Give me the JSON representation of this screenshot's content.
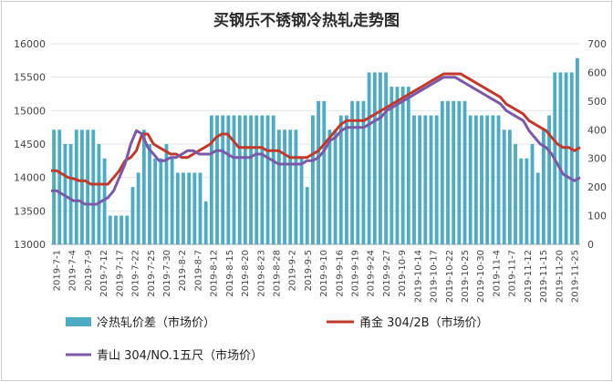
{
  "chart_data": {
    "type": "bar+line",
    "title": "买钢乐不锈钢冷热轧走势图",
    "left_axis": {
      "min": 13000,
      "max": 16000,
      "step": 500,
      "ticks": [
        "13000",
        "13500",
        "14000",
        "14500",
        "15000",
        "15500",
        "16000"
      ]
    },
    "right_axis": {
      "min": 0,
      "max": 700,
      "step": 100,
      "ticks": [
        "0",
        "100",
        "200",
        "300",
        "400",
        "500",
        "600",
        "700"
      ]
    },
    "x_labels": [
      "2019-7-1",
      "2019-7-4",
      "2019-7-9",
      "2019-7-12",
      "2019-7-17",
      "2019-7-22",
      "2019-7-25",
      "2019-7-30",
      "2019-8-2",
      "2019-8-7",
      "2019-8-12",
      "2019-8-15",
      "2019-8-20",
      "2019-8-23",
      "2019-8-28",
      "2019-9-2",
      "2019-9-5",
      "2019-9-10",
      "2019-9-16",
      "2019-9-19",
      "2019-9-24",
      "2019-9-27",
      "2019-10-9",
      "2019-10-14",
      "2019-10-17",
      "2019-10-22",
      "2019-10-25",
      "2019-10-30",
      "2019-11-4",
      "2019-11-7",
      "2019-11-12",
      "2019-11-15",
      "2019-11-20",
      "2019-11-25"
    ],
    "series": [
      {
        "name": "冷热轧价差（市场价）",
        "type": "bar",
        "axis": "right",
        "color": "#4eabc4",
        "values": [
          400,
          400,
          350,
          350,
          400,
          400,
          400,
          400,
          350,
          300,
          100,
          100,
          100,
          100,
          200,
          250,
          400,
          350,
          300,
          300,
          350,
          300,
          250,
          250,
          250,
          250,
          250,
          150,
          450,
          450,
          450,
          450,
          450,
          450,
          450,
          450,
          450,
          450,
          450,
          450,
          400,
          400,
          400,
          400,
          300,
          200,
          450,
          500,
          500,
          400,
          400,
          450,
          450,
          500,
          500,
          500,
          600,
          600,
          600,
          600,
          550,
          550,
          550,
          550,
          450,
          450,
          450,
          450,
          450,
          500,
          500,
          500,
          500,
          500,
          450,
          450,
          450,
          450,
          450,
          450,
          400,
          400,
          350,
          300,
          300,
          350,
          250,
          400,
          450,
          600,
          600,
          600,
          600,
          650
        ]
      },
      {
        "name": "甬金 304/2B（市场价）",
        "type": "line",
        "axis": "left",
        "color": "#c0392b",
        "values": [
          14100,
          14100,
          14050,
          14000,
          13980,
          13950,
          13950,
          13900,
          13900,
          13900,
          13900,
          14000,
          14100,
          14250,
          14300,
          14400,
          14650,
          14650,
          14500,
          14450,
          14400,
          14350,
          14350,
          14300,
          14300,
          14350,
          14400,
          14450,
          14500,
          14600,
          14650,
          14650,
          14550,
          14450,
          14450,
          14450,
          14450,
          14450,
          14400,
          14400,
          14400,
          14350,
          14300,
          14300,
          14300,
          14300,
          14350,
          14400,
          14500,
          14600,
          14700,
          14800,
          14850,
          14850,
          14850,
          14850,
          14900,
          14950,
          15000,
          15050,
          15100,
          15150,
          15200,
          15250,
          15300,
          15350,
          15400,
          15450,
          15500,
          15550,
          15550,
          15550,
          15550,
          15500,
          15450,
          15400,
          15350,
          15300,
          15250,
          15200,
          15100,
          15050,
          15000,
          14950,
          14850,
          14800,
          14750,
          14700,
          14600,
          14500,
          14450,
          14450,
          14400,
          14450
        ]
      },
      {
        "name": "青山 304/NO.1五尺（市场价）",
        "type": "line",
        "axis": "left",
        "color": "#7a5aa8",
        "values": [
          13800,
          13800,
          13750,
          13700,
          13650,
          13650,
          13600,
          13600,
          13600,
          13650,
          13700,
          13800,
          14000,
          14200,
          14500,
          14700,
          14650,
          14450,
          14350,
          14250,
          14250,
          14300,
          14300,
          14350,
          14400,
          14400,
          14350,
          14350,
          14350,
          14400,
          14400,
          14350,
          14300,
          14300,
          14300,
          14300,
          14350,
          14350,
          14300,
          14250,
          14200,
          14200,
          14200,
          14200,
          14200,
          14250,
          14250,
          14300,
          14400,
          14550,
          14600,
          14700,
          14750,
          14750,
          14750,
          14750,
          14800,
          14850,
          14900,
          15000,
          15050,
          15100,
          15150,
          15200,
          15250,
          15300,
          15350,
          15400,
          15450,
          15500,
          15500,
          15500,
          15450,
          15400,
          15350,
          15300,
          15250,
          15200,
          15150,
          15100,
          15000,
          14950,
          14900,
          14850,
          14700,
          14600,
          14500,
          14450,
          14350,
          14200,
          14050,
          14000,
          13950,
          14000
        ]
      }
    ],
    "grid": true,
    "legend_position": "bottom"
  }
}
